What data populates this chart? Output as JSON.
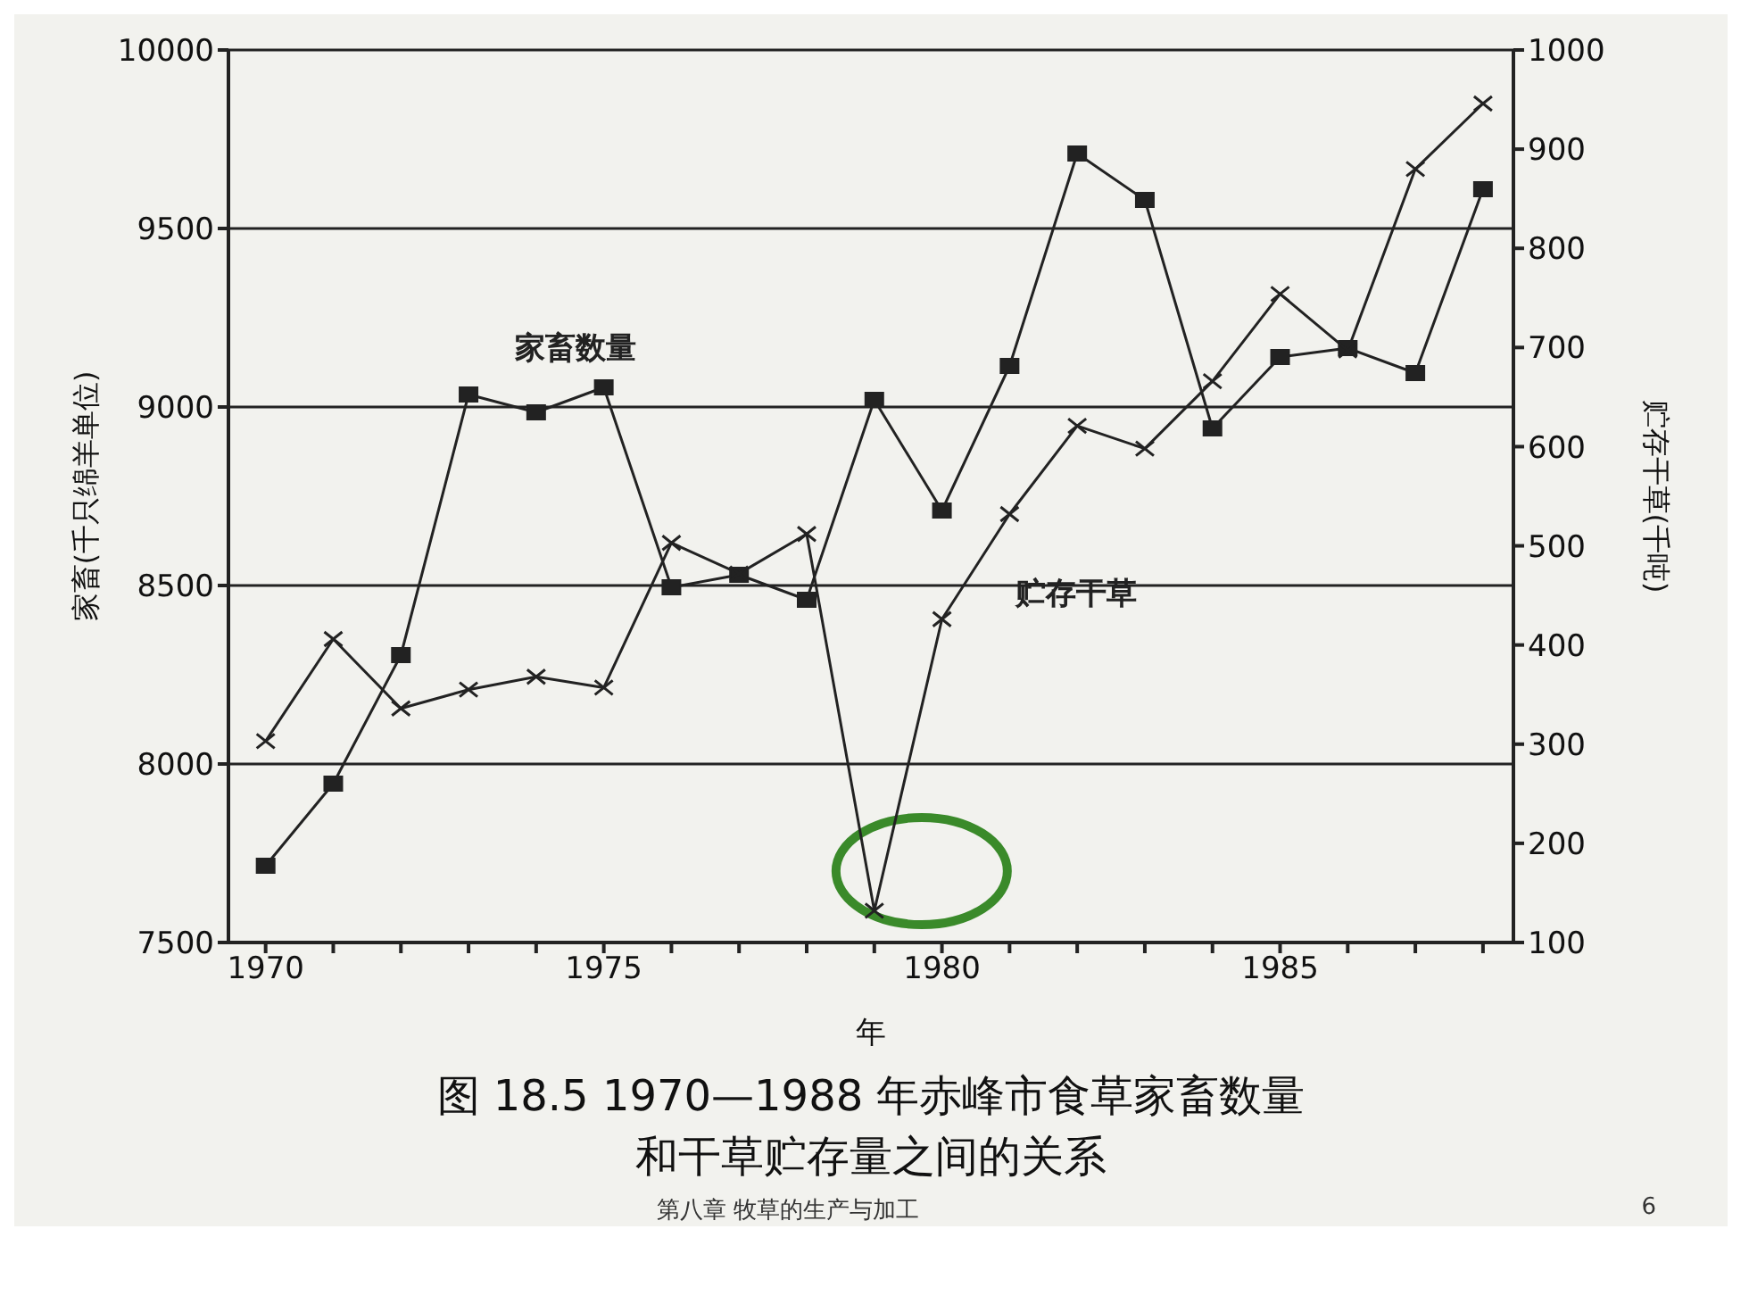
{
  "chart_data": {
    "type": "line",
    "title": "图 18.5  1970—1988 年赤峰市食草家畜数量",
    "subtitle": "和干草贮存量之间的关系",
    "xlabel": "年",
    "ylabel": "家畜(千只绵羊单位)",
    "y2label": "贮存干草(千吨)",
    "x": [
      1970,
      1971,
      1972,
      1973,
      1974,
      1975,
      1976,
      1977,
      1978,
      1979,
      1980,
      1981,
      1982,
      1983,
      1984,
      1985,
      1986,
      1987,
      1988
    ],
    "series": [
      {
        "name": "家畜数量",
        "color": "#222222",
        "marker": "square",
        "values": [
          7715,
          7945,
          8305,
          9035,
          8985,
          9055,
          8495,
          8530,
          8460,
          9020,
          8710,
          9115,
          9710,
          9580,
          8940,
          9140,
          9165,
          9095,
          9610
        ]
      },
      {
        "name": "贮存干草",
        "color": "#222222",
        "marker": "cross",
        "axis": "y2",
        "values": [
          303,
          406,
          336,
          355,
          368,
          357,
          503,
          472,
          512,
          132,
          426,
          532,
          621,
          598,
          666,
          754,
          697,
          880,
          946
        ]
      }
    ],
    "xlim": [
      1969.45,
      1988.45
    ],
    "xticks": [
      1970,
      {
        "value": 1971,
        "label": null
      },
      {
        "value": 1972,
        "label": null
      },
      {
        "value": 1973,
        "label": null
      },
      {
        "value": 1974,
        "label": null
      },
      1975,
      {
        "value": 1976,
        "label": null
      },
      {
        "value": 1977,
        "label": null
      },
      {
        "value": 1978,
        "label": null
      },
      {
        "value": 1979,
        "label": null
      },
      1980,
      {
        "value": 1981,
        "label": null
      },
      {
        "value": 1982,
        "label": null
      },
      {
        "value": 1983,
        "label": null
      },
      {
        "value": 1984,
        "label": null
      },
      1985,
      {
        "value": 1986,
        "label": null
      },
      {
        "value": 1987,
        "label": null
      },
      {
        "value": 1988,
        "label": null
      }
    ],
    "ylim": [
      7500,
      10000
    ],
    "yticks": [
      7500,
      8000,
      8500,
      9000,
      9500,
      10000
    ],
    "y2lim": [
      100,
      1000
    ],
    "y2ticks": [
      100,
      200,
      300,
      400,
      500,
      600,
      700,
      800,
      900,
      1000
    ],
    "grid": "y",
    "line_style": "solid",
    "annotations": [
      "第八章 牧草的生产与加工",
      "6"
    ]
  }
}
